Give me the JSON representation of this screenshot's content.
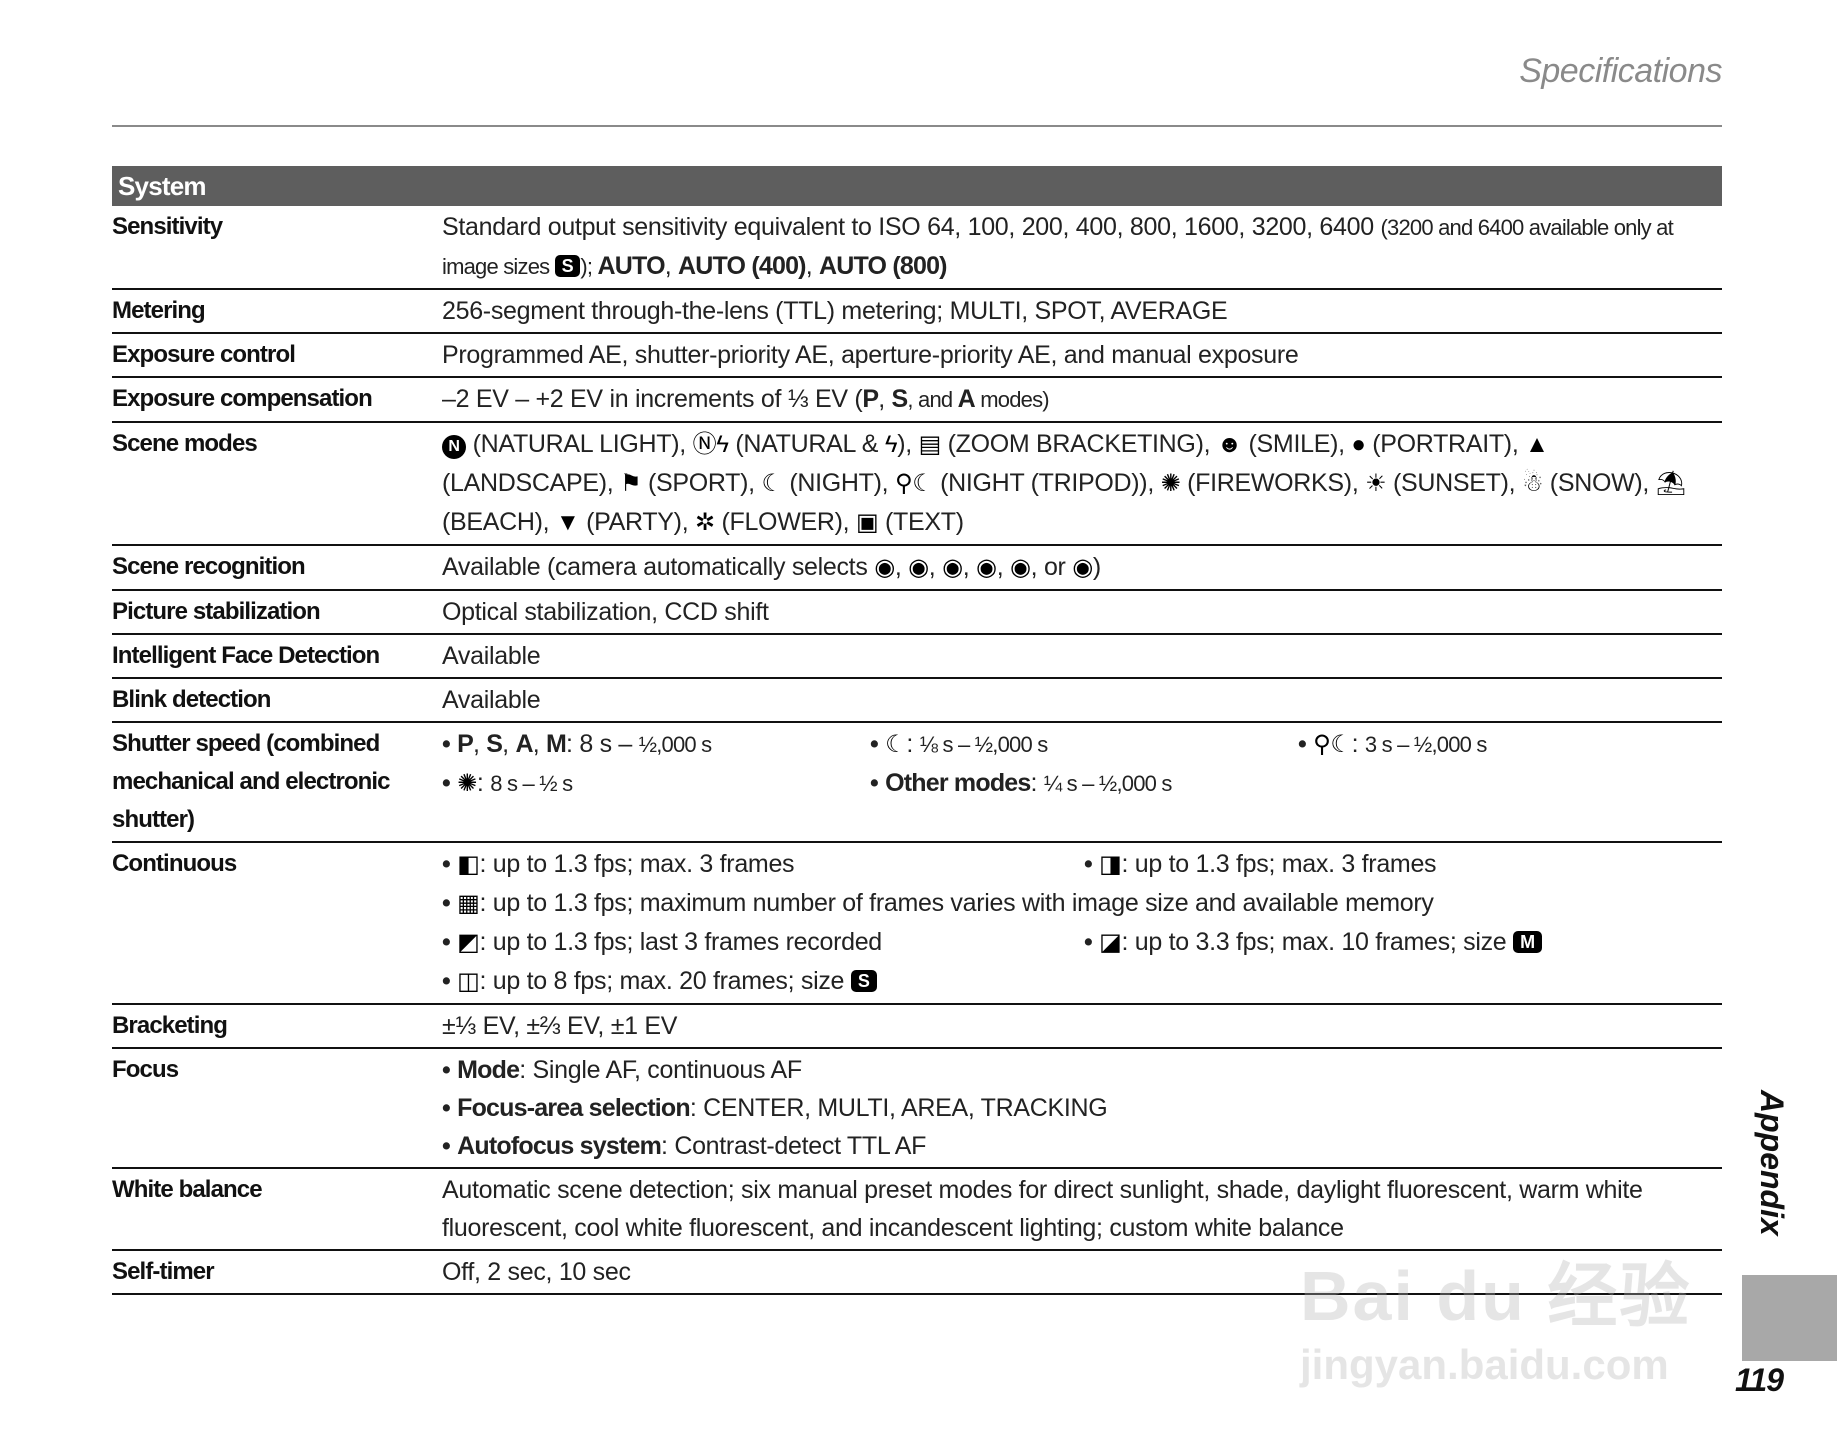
{
  "header": {
    "section_title": "Specifications"
  },
  "table": {
    "group_title": "System",
    "rows": [
      {
        "label": "Sensitivity",
        "type": "text",
        "content": [
          "Standard output sensitivity equivalent to ISO 64, 100, 200, 400, 800, 1600, 3200, 6400 ",
          {
            "s": "(3200 and 6400 available only at image sizes "
          },
          {
            "badge": "S",
            "icon": "size-s-icon"
          },
          {
            "s": "); "
          },
          {
            "b": "AUTO"
          },
          ", ",
          {
            "b": "AUTO (400)"
          },
          ", ",
          {
            "b": "AUTO (800)"
          }
        ]
      },
      {
        "label": "Metering",
        "type": "text",
        "content": [
          "256-segment through-the-lens (TTL) metering; MULTI, SPOT, AVERAGE"
        ]
      },
      {
        "label": "Exposure control",
        "type": "text",
        "content": [
          "Programmed AE, shutter-priority AE, aperture-priority AE, and manual exposure"
        ]
      },
      {
        "label": "Exposure compensation",
        "type": "text",
        "content": [
          "–2 EV – +2 EV in increments of ⅓ EV (",
          {
            "b": "P"
          },
          ", ",
          {
            "b": "S"
          },
          {
            "s": ", and "
          },
          {
            "b": "A"
          },
          {
            "s": " modes)"
          }
        ]
      },
      {
        "label": "Scene modes",
        "type": "text",
        "content": [
          {
            "circle": "N",
            "icon": "natural-light-icon"
          },
          " (NATURAL LIGHT), ",
          {
            "g": "Ⓝϟ",
            "icon": "natural-flash-icon"
          },
          " (NATURAL & ",
          {
            "g": "ϟ",
            "icon": "flash-icon"
          },
          "), ",
          {
            "g": "▤",
            "icon": "zoom-bracketing-icon"
          },
          " (ZOOM BRACKETING), ",
          {
            "g": "☻",
            "icon": "smile-icon"
          },
          " (SMILE), ",
          {
            "g": "●",
            "icon": "portrait-icon"
          },
          " (PORTRAIT), ",
          {
            "g": "▲",
            "icon": "landscape-icon"
          },
          " (LANDSCAPE), ",
          {
            "g": "⚑",
            "icon": "sport-icon"
          },
          " (SPORT), ",
          {
            "g": "☾",
            "icon": "night-icon"
          },
          " (NIGHT), ",
          {
            "g": "⚲☾",
            "icon": "night-tripod-icon"
          },
          " (NIGHT (TRIPOD)), ",
          {
            "g": "✺",
            "icon": "fireworks-icon"
          },
          " (FIREWORKS), ",
          {
            "g": "☀",
            "icon": "sunset-icon"
          },
          " (SUNSET), ",
          {
            "g": "☃",
            "icon": "snow-icon"
          },
          " (SNOW), ",
          {
            "g": "⛱",
            "icon": "beach-icon"
          },
          " (BEACH), ",
          {
            "g": "▼",
            "icon": "party-icon"
          },
          " (PARTY), ",
          {
            "g": "✲",
            "icon": "flower-icon"
          },
          " (FLOWER), ",
          {
            "g": "▣",
            "icon": "text-icon"
          },
          " (TEXT)"
        ]
      },
      {
        "label": "Scene recognition",
        "type": "text",
        "content": [
          "Available (camera automatically selects ",
          {
            "g": "◉",
            "icon": "auto-portrait-icon"
          },
          ", ",
          {
            "g": "◉",
            "icon": "auto-landscape-icon"
          },
          ", ",
          {
            "g": "◉",
            "icon": "auto-night-icon"
          },
          ", ",
          {
            "g": "◉",
            "icon": "auto-macro-icon"
          },
          ", ",
          {
            "g": "◉",
            "icon": "auto-backlit-portrait-icon"
          },
          ", or ",
          {
            "g": "◉",
            "icon": "auto-night-portrait-icon"
          },
          ")"
        ]
      },
      {
        "label": "Picture stabilization",
        "type": "text",
        "content": [
          "Optical stabilization, CCD shift"
        ]
      },
      {
        "label": "Intelligent Face Detection",
        "type": "text",
        "content": [
          "Available"
        ]
      },
      {
        "label": "Blink detection",
        "type": "text",
        "content": [
          "Available"
        ]
      },
      {
        "label": "Shutter speed (combined mechanical and electronic shutter)",
        "type": "bullets",
        "cols": 3,
        "items": [
          {
            "content": [
              {
                "b": "P"
              },
              ", ",
              {
                "b": "S"
              },
              ", ",
              {
                "b": "A"
              },
              ", ",
              {
                "b": "M"
              },
              ": 8 s – ",
              {
                "s": "½,000 s"
              }
            ]
          },
          {
            "content": [
              {
                "g": "☾",
                "icon": "night-icon"
              },
              ": ",
              {
                "s": "⅛ s – ½,000 s"
              }
            ]
          },
          {
            "content": [
              {
                "g": "⚲☾",
                "icon": "night-tripod-icon"
              },
              ": ",
              {
                "s": "3 s – ½,000 s"
              }
            ]
          },
          {
            "content": [
              {
                "g": "✺",
                "icon": "fireworks-icon"
              },
              ": ",
              {
                "s": "8 s – ½ s"
              }
            ]
          },
          {
            "content": [
              {
                "b": "Other modes"
              },
              ": ",
              {
                "s": "¼ s – ½,000 s"
              }
            ]
          }
        ]
      },
      {
        "label": "Continuous",
        "type": "bullets",
        "cols": 2,
        "items": [
          {
            "content": [
              {
                "g": "◧",
                "icon": "top-3-continuous-icon"
              },
              ": up to 1.3 fps; max. 3 frames"
            ]
          },
          {
            "content": [
              {
                "g": "◨",
                "icon": "bracketing-continuous-icon"
              },
              ": up to 1.3 fps; max. 3 frames"
            ]
          },
          {
            "span": true,
            "content": [
              {
                "g": "▦",
                "icon": "long-period-continuous-icon"
              },
              ": up to 1.3 fps; maximum number of frames varies with image size and available memory"
            ]
          },
          {
            "content": [
              {
                "g": "◩",
                "icon": "final-3-continuous-icon"
              },
              ": up to 1.3 fps; last 3 frames recorded"
            ]
          },
          {
            "content": [
              {
                "g": "◪",
                "icon": "medium-speed-continuous-icon"
              },
              ": up to 3.3 fps; max. 10 frames; size ",
              {
                "badge": "M",
                "icon": "size-m-icon"
              }
            ]
          },
          {
            "span": true,
            "content": [
              {
                "g": "◫",
                "icon": "high-speed-continuous-icon"
              },
              ": up to 8 fps; max. 20 frames; size ",
              {
                "badge": "S",
                "icon": "size-s-icon"
              }
            ]
          }
        ]
      },
      {
        "label": "Bracketing",
        "type": "text",
        "content": [
          "±⅓ EV, ±⅔ EV, ±1 EV"
        ]
      },
      {
        "label": "Focus",
        "type": "bullets",
        "cols": 1,
        "items": [
          {
            "content": [
              {
                "b": "Mode"
              },
              ": Single AF, continuous AF"
            ]
          },
          {
            "content": [
              {
                "b": "Focus-area selection"
              },
              ": CENTER, MULTI, AREA, TRACKING"
            ]
          },
          {
            "content": [
              {
                "b": "Autofocus system"
              },
              ": Contrast-detect TTL AF"
            ]
          }
        ]
      },
      {
        "label": "White balance",
        "type": "text",
        "content": [
          "Automatic scene detection; six manual preset modes for direct sunlight, shade, daylight fluorescent, warm white fluorescent, cool white fluorescent, and incandescent lighting; custom white balance"
        ]
      },
      {
        "label": "Self-timer",
        "type": "text",
        "content": [
          "Off, 2 sec, 10 sec"
        ]
      }
    ]
  },
  "side": {
    "section_tab": "Appendix",
    "page_number": "119"
  },
  "watermark": {
    "line1": "Bai du 经验",
    "line2": "jingyan.baidu.com"
  }
}
